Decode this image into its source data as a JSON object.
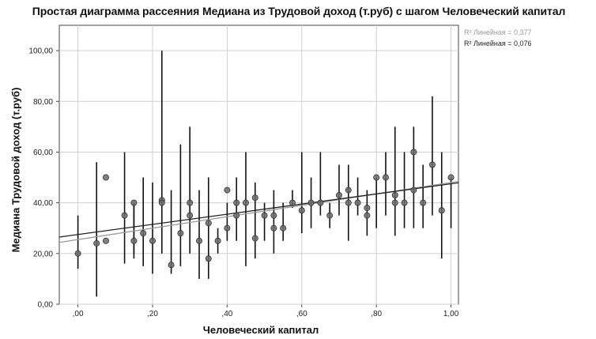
{
  "chart_data": {
    "type": "scatter",
    "title": "Простая диаграмма рассеяния Медиана из Трудовой доход (т.руб) с шагом Человеческий капитал",
    "xlabel": "Человеческий капитал",
    "ylabel": "Медиана Трудовой доход (т.руб)",
    "xlim": [
      -0.05,
      1.02
    ],
    "ylim": [
      0,
      110
    ],
    "x_ticks": [
      ",00",
      ",20",
      ",40",
      ",60",
      ",80",
      "1,00"
    ],
    "x_tick_values": [
      0,
      0.2,
      0.4,
      0.6,
      0.8,
      1.0
    ],
    "y_ticks": [
      "0,00",
      "20,00",
      "40,00",
      "60,00",
      "80,00",
      "100,00"
    ],
    "y_tick_values": [
      0,
      20,
      40,
      60,
      80,
      100
    ],
    "grid": true,
    "legend": [
      {
        "label": "R² Линейная = 0,377",
        "color": "#999999"
      },
      {
        "label": "R² Линейная = 0,076",
        "color": "#222222"
      }
    ],
    "fit_lines": [
      {
        "name": "R² Линейная = 0,377",
        "intercept": 25.5,
        "slope": 22.5,
        "color": "#999999"
      },
      {
        "name": "R² Линейная = 0,076",
        "intercept": 27.5,
        "slope": 20.0,
        "color": "#222222"
      }
    ],
    "points": [
      {
        "x": 0.0,
        "y": 20,
        "lo": 14,
        "hi": 35
      },
      {
        "x": 0.05,
        "y": 24,
        "lo": 3,
        "hi": 56
      },
      {
        "x": 0.075,
        "y": 50
      },
      {
        "x": 0.075,
        "y": 25
      },
      {
        "x": 0.125,
        "y": 35,
        "lo": 16,
        "hi": 60
      },
      {
        "x": 0.15,
        "y": 40,
        "lo": 18,
        "hi": 40
      },
      {
        "x": 0.15,
        "y": 25,
        "lo": 20,
        "hi": 40
      },
      {
        "x": 0.175,
        "y": 28,
        "lo": 15,
        "hi": 50
      },
      {
        "x": 0.2,
        "y": 25,
        "lo": 12,
        "hi": 48
      },
      {
        "x": 0.225,
        "y": 41,
        "lo": 20,
        "hi": 100
      },
      {
        "x": 0.225,
        "y": 40
      },
      {
        "x": 0.25,
        "y": 15.5,
        "lo": 12,
        "hi": 45
      },
      {
        "x": 0.275,
        "y": 28,
        "lo": 15,
        "hi": 63
      },
      {
        "x": 0.3,
        "y": 35,
        "lo": 20,
        "hi": 70
      },
      {
        "x": 0.3,
        "y": 40
      },
      {
        "x": 0.325,
        "y": 25,
        "lo": 10,
        "hi": 45
      },
      {
        "x": 0.35,
        "y": 18,
        "lo": 10,
        "hi": 50
      },
      {
        "x": 0.35,
        "y": 32
      },
      {
        "x": 0.375,
        "y": 25,
        "lo": 20,
        "hi": 30
      },
      {
        "x": 0.4,
        "y": 45,
        "lo": 25,
        "hi": 40
      },
      {
        "x": 0.4,
        "y": 30
      },
      {
        "x": 0.425,
        "y": 40,
        "lo": 25,
        "hi": 50
      },
      {
        "x": 0.425,
        "y": 35
      },
      {
        "x": 0.45,
        "y": 40,
        "lo": 15,
        "hi": 60
      },
      {
        "x": 0.475,
        "y": 42,
        "lo": 18,
        "hi": 48
      },
      {
        "x": 0.475,
        "y": 26
      },
      {
        "x": 0.5,
        "y": 35,
        "lo": 25,
        "hi": 40
      },
      {
        "x": 0.525,
        "y": 35,
        "lo": 20,
        "hi": 45
      },
      {
        "x": 0.525,
        "y": 30
      },
      {
        "x": 0.55,
        "y": 30,
        "lo": 25,
        "hi": 40
      },
      {
        "x": 0.575,
        "y": 40,
        "lo": 38,
        "hi": 45
      },
      {
        "x": 0.6,
        "y": 37,
        "lo": 28,
        "hi": 60
      },
      {
        "x": 0.625,
        "y": 40,
        "lo": 30,
        "hi": 50
      },
      {
        "x": 0.65,
        "y": 40,
        "lo": 35,
        "hi": 60
      },
      {
        "x": 0.675,
        "y": 35,
        "lo": 30,
        "hi": 40
      },
      {
        "x": 0.7,
        "y": 43,
        "lo": 35,
        "hi": 55
      },
      {
        "x": 0.725,
        "y": 45,
        "lo": 25,
        "hi": 55
      },
      {
        "x": 0.725,
        "y": 40
      },
      {
        "x": 0.75,
        "y": 40,
        "lo": 35,
        "hi": 50
      },
      {
        "x": 0.775,
        "y": 38,
        "lo": 27,
        "hi": 45
      },
      {
        "x": 0.775,
        "y": 35
      },
      {
        "x": 0.8,
        "y": 50,
        "lo": 30,
        "hi": 50
      },
      {
        "x": 0.825,
        "y": 50,
        "lo": 35,
        "hi": 60
      },
      {
        "x": 0.85,
        "y": 43,
        "lo": 27,
        "hi": 70
      },
      {
        "x": 0.85,
        "y": 40
      },
      {
        "x": 0.875,
        "y": 40,
        "lo": 30,
        "hi": 60
      },
      {
        "x": 0.9,
        "y": 60,
        "lo": 30,
        "hi": 70
      },
      {
        "x": 0.9,
        "y": 45
      },
      {
        "x": 0.925,
        "y": 40,
        "lo": 30,
        "hi": 55
      },
      {
        "x": 0.95,
        "y": 55,
        "lo": 35,
        "hi": 82
      },
      {
        "x": 0.975,
        "y": 37,
        "lo": 18,
        "hi": 60
      },
      {
        "x": 1.0,
        "y": 50,
        "lo": 30,
        "hi": 50
      }
    ]
  }
}
